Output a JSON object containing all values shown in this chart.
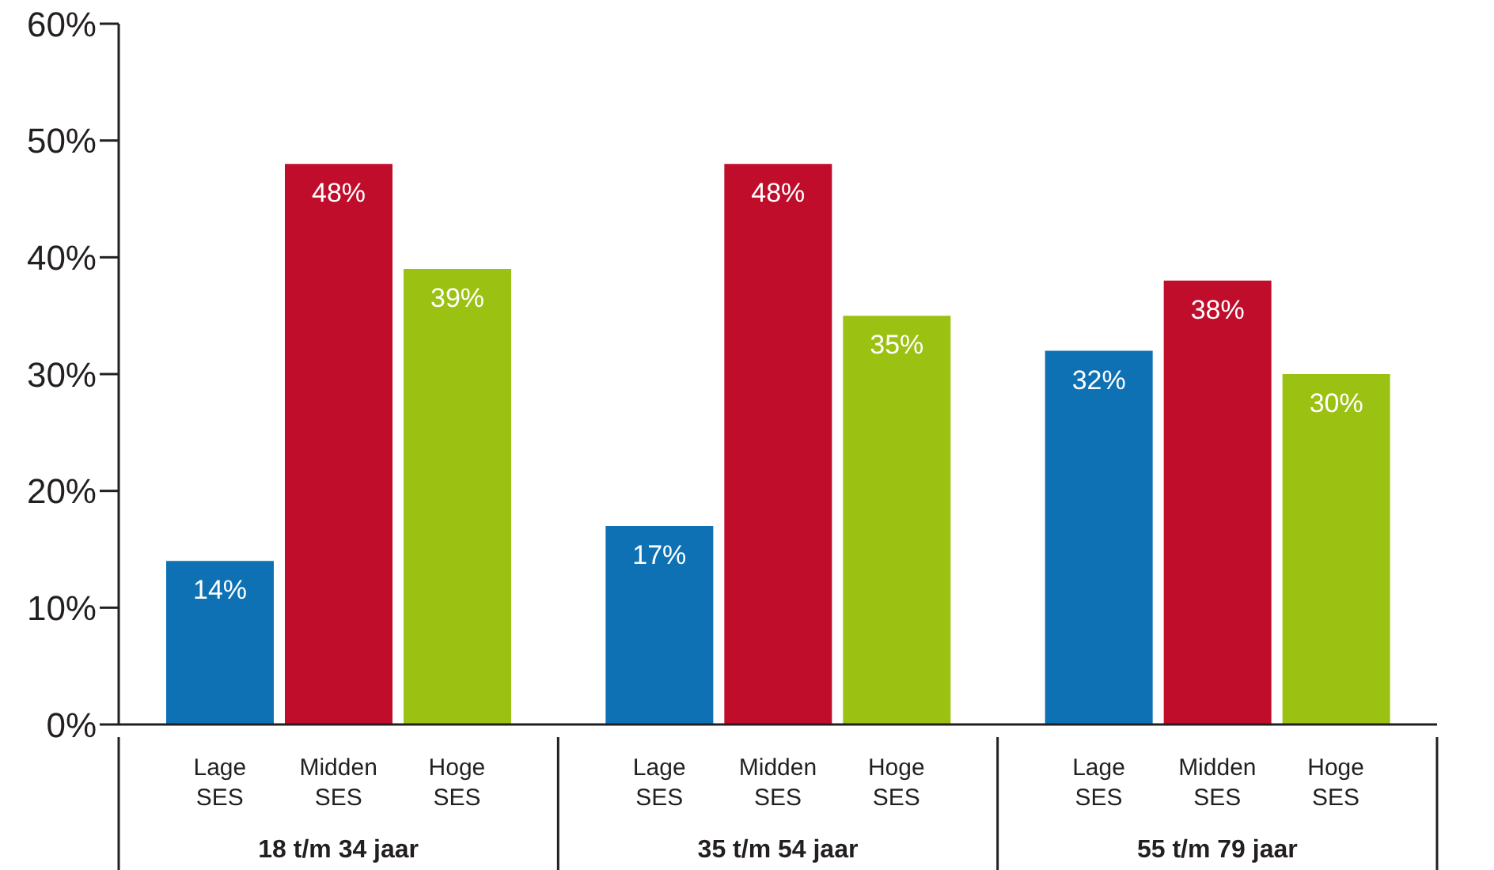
{
  "chart_data": {
    "type": "bar",
    "categories": [
      "18 t/m 34 jaar",
      "35 t/m 54 jaar",
      "55 t/m 79 jaar"
    ],
    "series": [
      {
        "name": "Lage SES",
        "color": "#0e71b4",
        "values": [
          14,
          17,
          32
        ],
        "value_labels": [
          "14%",
          "17%",
          "32%"
        ]
      },
      {
        "name": "Midden SES",
        "color": "#c00d2b",
        "values": [
          48,
          48,
          38
        ],
        "value_labels": [
          "48%",
          "48%",
          "38%"
        ]
      },
      {
        "name": "Hoge SES",
        "color": "#9bc112",
        "values": [
          39,
          35,
          30
        ],
        "value_labels": [
          "39%",
          "35%",
          "30%"
        ]
      }
    ],
    "ylim": [
      0,
      60
    ],
    "yticks": [
      {
        "value": 0,
        "label": "0%"
      },
      {
        "value": 10,
        "label": "10%"
      },
      {
        "value": 20,
        "label": "20%"
      },
      {
        "value": 30,
        "label": "30%"
      },
      {
        "value": 40,
        "label": "40%"
      },
      {
        "value": 50,
        "label": "50%"
      },
      {
        "value": 60,
        "label": "60%"
      }
    ],
    "grid": false,
    "legend": false
  }
}
